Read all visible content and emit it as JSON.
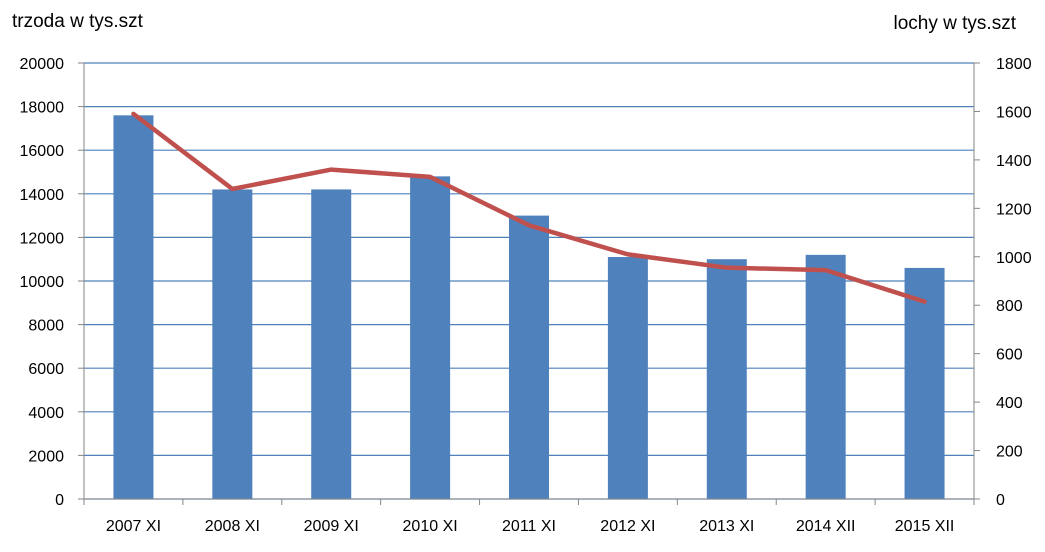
{
  "chart_data": {
    "type": "bar",
    "categories": [
      "2007 XI",
      "2008 XI",
      "2009 XI",
      "2010 XI",
      "2011 XI",
      "2012 XI",
      "2013 XI",
      "2014 XII",
      "2015 XII"
    ],
    "series": [
      {
        "type": "bar",
        "axis": "left",
        "color": "#4F81BD",
        "values": [
          17600,
          14200,
          14200,
          14800,
          13000,
          11100,
          11000,
          11200,
          10600
        ]
      },
      {
        "type": "line",
        "axis": "right",
        "color": "#C0504D",
        "values": [
          1590,
          1280,
          1360,
          1330,
          1130,
          1010,
          955,
          945,
          815
        ]
      }
    ],
    "ylabel_left": "trzoda w tys.szt",
    "ylabel_right": "lochy w tys.szt",
    "ylim_left": [
      0,
      20000
    ],
    "ylim_right": [
      0,
      1800
    ],
    "yticks_left": [
      "0",
      "2000",
      "4000",
      "6000",
      "8000",
      "10000",
      "12000",
      "14000",
      "16000",
      "18000",
      "20000"
    ],
    "yticks_right": [
      "0",
      "200",
      "400",
      "600",
      "800",
      "1000",
      "1200",
      "1400",
      "1600",
      "1800"
    ],
    "grid": true,
    "gridline_color": "#4F81BD"
  }
}
